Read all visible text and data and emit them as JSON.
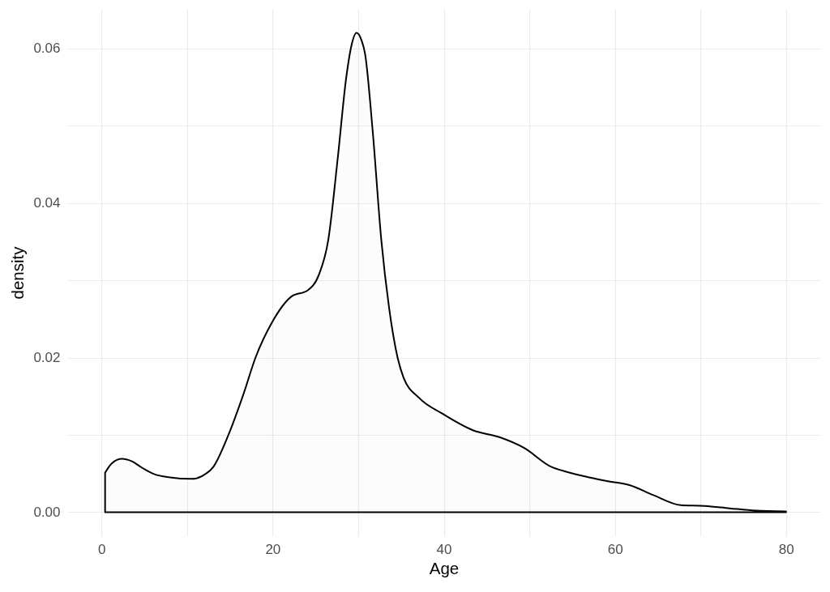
{
  "chart_data": {
    "type": "area",
    "xlabel": "Age",
    "ylabel": "density",
    "color": "#000000",
    "x": [
      0.42,
      1.2,
      2.4,
      3.5,
      4.8,
      6.2,
      8.0,
      10.5,
      11.8,
      13.1,
      14.8,
      16.6,
      18.0,
      20.0,
      22.2,
      24.1,
      25.4,
      26.5,
      27.6,
      28.6,
      29.2,
      29.8,
      30.4,
      30.8,
      31.7,
      32.7,
      33.6,
      34.6,
      35.3,
      37.1,
      39.9,
      43.4,
      46.5,
      49.4,
      52.5,
      54.4,
      57.0,
      59.2,
      61.7,
      64.5,
      67.7,
      70.5,
      73.4,
      76.5,
      80
    ],
    "values": [
      0.0051,
      0.0063,
      0.0069,
      0.0066,
      0.0057,
      0.0049,
      0.0045,
      0.0043,
      0.0047,
      0.0059,
      0.0099,
      0.0153,
      0.02,
      0.0247,
      0.0279,
      0.0287,
      0.0307,
      0.0352,
      0.0457,
      0.0562,
      0.0603,
      0.062,
      0.061,
      0.0593,
      0.0492,
      0.0352,
      0.0265,
      0.02,
      0.0174,
      0.0148,
      0.0127,
      0.0106,
      0.0097,
      0.0083,
      0.0059,
      0.0052,
      0.0045,
      0.004,
      0.0035,
      0.0022,
      0.0009,
      0.0008,
      0.0005,
      0.0002,
      0.0001
    ],
    "xlim": [
      -4,
      84
    ],
    "xticks": [
      0,
      {
        "value": 10,
        "label": null
      },
      20,
      {
        "value": 30,
        "label": null
      },
      40,
      {
        "value": 50,
        "label": null
      },
      60,
      {
        "value": 70,
        "label": null
      },
      80
    ],
    "ylim": [
      -0.0031,
      0.0651
    ],
    "yticks": [
      {
        "value": 0,
        "label": "0.00"
      },
      {
        "value": 0.01,
        "label": null
      },
      0.02,
      {
        "value": 0.03,
        "label": null
      },
      0.04,
      {
        "value": 0.05,
        "label": null
      },
      0.06
    ],
    "grid": true
  }
}
